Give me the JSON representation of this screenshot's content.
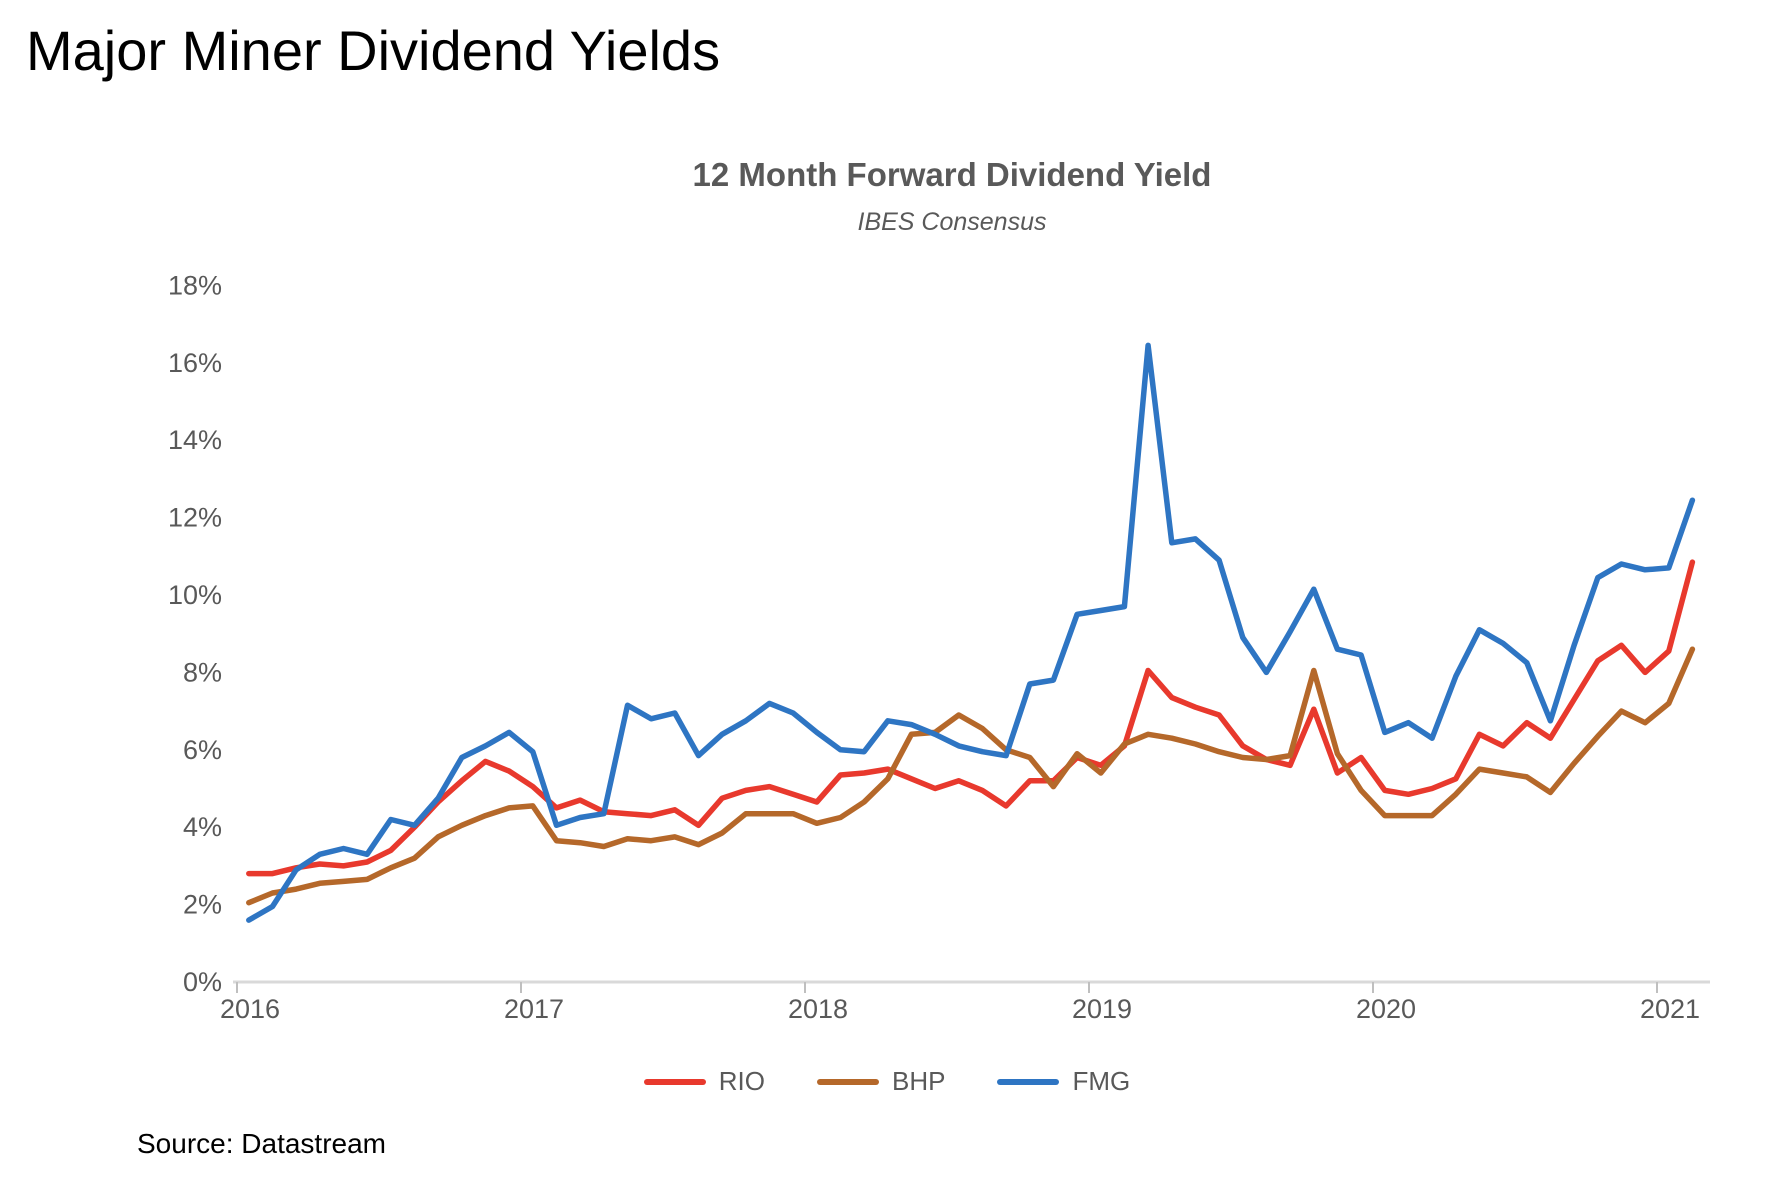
{
  "page": {
    "title": "Major Miner Dividend Yields",
    "source": "Source: Datastream"
  },
  "chart": {
    "title": "12 Month Forward Dividend Yield",
    "subtitle": "IBES Consensus"
  },
  "chart_data": {
    "type": "line",
    "title": "12 Month Forward Dividend Yield",
    "subtitle": "IBES Consensus",
    "x_unit": "month",
    "grid": false,
    "legend_position": "bottom",
    "ylim": [
      0,
      18
    ],
    "y_tick_step_pct": 2,
    "y_tick_labels": [
      "0%",
      "2%",
      "4%",
      "6%",
      "8%",
      "10%",
      "12%",
      "14%",
      "16%",
      "18%"
    ],
    "x_tick_labels": [
      "2016",
      "2017",
      "2018",
      "2019",
      "2020",
      "2021"
    ],
    "axis_color": "#d9d9d9",
    "tick_color": "#bfbfbf",
    "label_color": "#595959",
    "months": [
      "2016-01",
      "2016-02",
      "2016-03",
      "2016-04",
      "2016-05",
      "2016-06",
      "2016-07",
      "2016-08",
      "2016-09",
      "2016-10",
      "2016-11",
      "2016-12",
      "2017-01",
      "2017-02",
      "2017-03",
      "2017-04",
      "2017-05",
      "2017-06",
      "2017-07",
      "2017-08",
      "2017-09",
      "2017-10",
      "2017-11",
      "2017-12",
      "2018-01",
      "2018-02",
      "2018-03",
      "2018-04",
      "2018-05",
      "2018-06",
      "2018-07",
      "2018-08",
      "2018-09",
      "2018-10",
      "2018-11",
      "2018-12",
      "2019-01",
      "2019-02",
      "2019-03",
      "2019-04",
      "2019-05",
      "2019-06",
      "2019-07",
      "2019-08",
      "2019-09",
      "2019-10",
      "2019-11",
      "2019-12",
      "2020-01",
      "2020-02",
      "2020-03",
      "2020-04",
      "2020-05",
      "2020-06",
      "2020-07",
      "2020-08",
      "2020-09",
      "2020-10",
      "2020-11",
      "2020-12",
      "2021-01",
      "2021-02"
    ],
    "series": [
      {
        "name": "RIO",
        "color": "#e8392d",
        "values": [
          2.8,
          2.8,
          2.95,
          3.05,
          3.0,
          3.1,
          3.4,
          4.0,
          4.65,
          5.2,
          5.7,
          5.45,
          5.05,
          4.5,
          4.7,
          4.4,
          4.35,
          4.3,
          4.45,
          4.05,
          4.75,
          4.95,
          5.05,
          4.85,
          4.65,
          5.35,
          5.4,
          5.5,
          5.25,
          5.0,
          5.2,
          4.95,
          4.55,
          5.2,
          5.2,
          5.8,
          5.6,
          6.1,
          8.05,
          7.35,
          7.1,
          6.9,
          6.1,
          5.75,
          5.6,
          7.05,
          5.4,
          5.8,
          4.95,
          4.85,
          5.0,
          5.25,
          6.4,
          6.1,
          6.7,
          6.3,
          7.3,
          8.3,
          8.7,
          8.0,
          8.55,
          10.85
        ]
      },
      {
        "name": "BHP",
        "color": "#b5682a",
        "values": [
          2.05,
          2.3,
          2.4,
          2.55,
          2.6,
          2.65,
          2.95,
          3.2,
          3.75,
          4.05,
          4.3,
          4.5,
          4.55,
          3.65,
          3.6,
          3.5,
          3.7,
          3.65,
          3.75,
          3.55,
          3.85,
          4.35,
          4.35,
          4.35,
          4.1,
          4.25,
          4.65,
          5.25,
          6.4,
          6.45,
          6.9,
          6.55,
          6.0,
          5.8,
          5.05,
          5.9,
          5.4,
          6.15,
          6.4,
          6.3,
          6.15,
          5.95,
          5.8,
          5.75,
          5.85,
          8.05,
          5.9,
          4.95,
          4.3,
          4.3,
          4.3,
          4.85,
          5.5,
          5.4,
          5.3,
          4.9,
          5.65,
          6.35,
          7.0,
          6.7,
          7.2,
          8.6
        ]
      },
      {
        "name": "FMG",
        "color": "#2e75c3",
        "values": [
          1.6,
          1.95,
          2.9,
          3.3,
          3.45,
          3.3,
          4.2,
          4.05,
          4.75,
          5.8,
          6.1,
          6.45,
          5.95,
          4.05,
          4.25,
          4.35,
          7.15,
          6.8,
          6.95,
          5.85,
          6.4,
          6.75,
          7.2,
          6.95,
          6.45,
          6.0,
          5.95,
          6.75,
          6.65,
          6.4,
          6.1,
          5.95,
          5.85,
          7.7,
          7.8,
          9.5,
          9.6,
          9.7,
          16.45,
          11.35,
          11.45,
          10.9,
          8.9,
          8.0,
          9.05,
          10.15,
          8.6,
          8.45,
          6.45,
          6.7,
          6.3,
          7.9,
          9.1,
          8.75,
          8.25,
          6.75,
          8.7,
          10.45,
          10.8,
          10.65,
          10.7,
          12.45
        ]
      }
    ]
  }
}
